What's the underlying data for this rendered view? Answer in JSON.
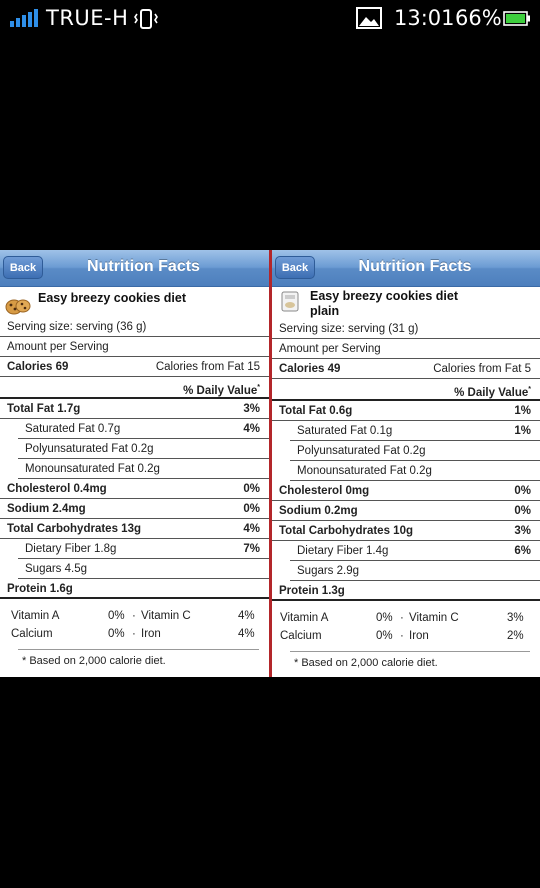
{
  "status_bar": {
    "carrier": "TRUE-H",
    "time": "13:01",
    "battery_percent": "66%"
  },
  "panels": [
    {
      "back_label": "Back",
      "title": "Nutrition Facts",
      "food_name_line1": "Easy breezy cookies diet",
      "food_name_line2": "",
      "serving_size": "Serving size: serving (36 g)",
      "amount_per_serving": "Amount per Serving",
      "calories": "Calories 69",
      "calories_from_fat": "Calories from Fat 15",
      "daily_value_header": "% Daily Value",
      "daily_value_mark": "*",
      "rows": [
        {
          "label": "Total Fat 1.7g",
          "value": "3%"
        },
        {
          "label": "Saturated Fat 0.7g",
          "value": "4%"
        },
        {
          "label": "Polyunsaturated Fat 0.2g",
          "value": ""
        },
        {
          "label": "Monounsaturated Fat 0.2g",
          "value": ""
        },
        {
          "label": "Cholesterol 0.4mg",
          "value": "0%"
        },
        {
          "label": "Sodium 2.4mg",
          "value": "0%"
        },
        {
          "label": "Total Carbohydrates 13g",
          "value": "4%"
        },
        {
          "label": "Dietary Fiber 1.8g",
          "value": "7%"
        },
        {
          "label": "Sugars 4.5g",
          "value": ""
        },
        {
          "label": "Protein 1.6g",
          "value": ""
        }
      ],
      "vitamin_a_label": "Vitamin A",
      "vitamin_a_value": "0%",
      "vitamin_c_label": "Vitamin C",
      "vitamin_c_value": "4%",
      "calcium_label": "Calcium",
      "calcium_value": "0%",
      "iron_label": "Iron",
      "iron_value": "4%",
      "dot": "·",
      "footnote": "* Based on 2,000 calorie diet."
    },
    {
      "back_label": "Back",
      "title": "Nutrition Facts",
      "food_name_line1": "Easy breezy cookies diet",
      "food_name_line2": "plain",
      "serving_size": "Serving size: serving (31 g)",
      "amount_per_serving": "Amount per Serving",
      "calories": "Calories 49",
      "calories_from_fat": "Calories from Fat 5",
      "daily_value_header": "% Daily Value",
      "daily_value_mark": "*",
      "rows": [
        {
          "label": "Total Fat 0.6g",
          "value": "1%"
        },
        {
          "label": "Saturated Fat 0.1g",
          "value": "1%"
        },
        {
          "label": "Polyunsaturated Fat 0.2g",
          "value": ""
        },
        {
          "label": "Monounsaturated Fat 0.2g",
          "value": ""
        },
        {
          "label": "Cholesterol 0mg",
          "value": "0%"
        },
        {
          "label": "Sodium 0.2mg",
          "value": "0%"
        },
        {
          "label": "Total Carbohydrates 10g",
          "value": "3%"
        },
        {
          "label": "Dietary Fiber 1.4g",
          "value": "6%"
        },
        {
          "label": "Sugars 2.9g",
          "value": ""
        },
        {
          "label": "Protein 1.3g",
          "value": ""
        }
      ],
      "vitamin_a_label": "Vitamin A",
      "vitamin_a_value": "0%",
      "vitamin_c_label": "Vitamin C",
      "vitamin_c_value": "3%",
      "calcium_label": "Calcium",
      "calcium_value": "0%",
      "iron_label": "Iron",
      "iron_value": "2%",
      "dot": "·",
      "footnote": "* Based on 2,000 calorie diet."
    }
  ],
  "colors": {
    "nav_blue": "#5a8bc6",
    "divider_red": "#b3262a",
    "signal_blue": "#2f8fe8",
    "battery_green": "#3ecf3e"
  },
  "icons": {
    "signal": "signal-bars-icon",
    "vibrate": "vibrate-icon",
    "gallery": "image-notification-icon",
    "battery": "battery-icon",
    "food_left": "cookie-icon",
    "food_right": "food-package-icon"
  }
}
